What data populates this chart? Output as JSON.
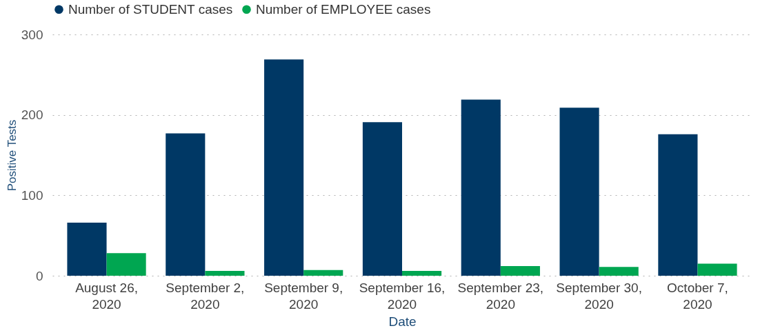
{
  "chart_data": {
    "type": "bar",
    "xlabel": "Date",
    "ylabel": "Positive Tests",
    "categories": [
      "August 26, 2020",
      "September 2, 2020",
      "September 9, 2020",
      "September 16, 2020",
      "September 23, 2020",
      "September 30, 2020",
      "October 7, 2020"
    ],
    "series": [
      {
        "name": "Number of STUDENT cases",
        "color": "#003865",
        "values": [
          66,
          177,
          269,
          191,
          219,
          209,
          176
        ]
      },
      {
        "name": "Number of EMPLOYEE cases",
        "color": "#00a651",
        "values": [
          28,
          6,
          7,
          6,
          12,
          11,
          15
        ]
      }
    ],
    "ylim": [
      0,
      300
    ],
    "yticks": [
      0,
      100,
      200,
      300
    ],
    "grid": "y",
    "legend": "top left"
  }
}
